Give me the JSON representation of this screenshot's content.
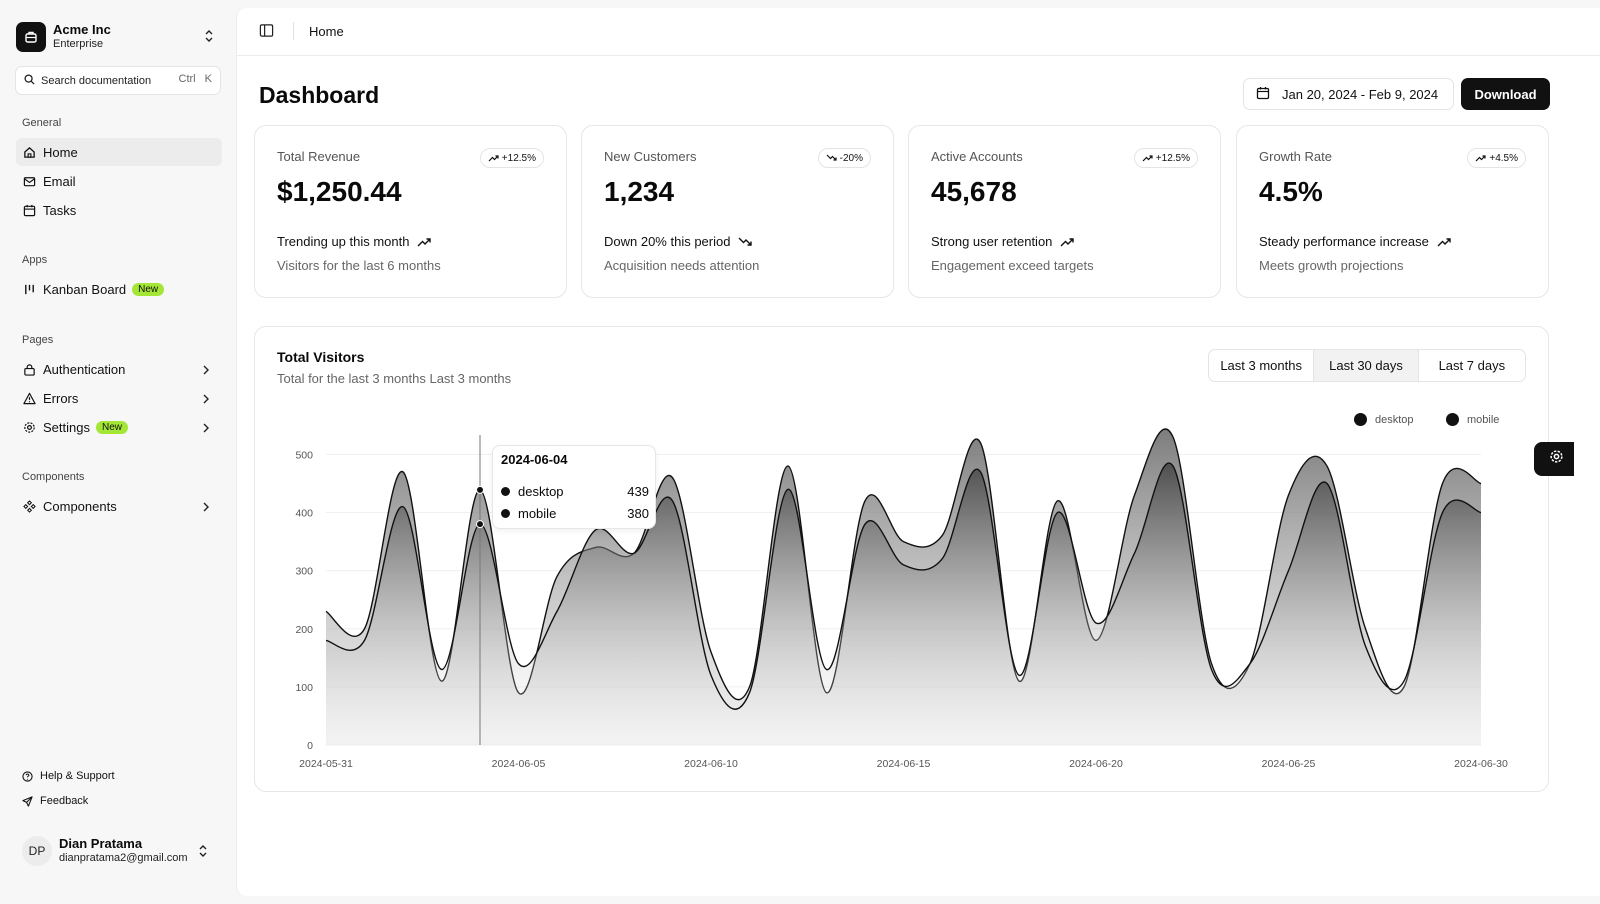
{
  "org": {
    "name": "Acme Inc",
    "plan": "Enterprise"
  },
  "search": {
    "placeholder": "Search documentation",
    "shortcut": "Ctrl K"
  },
  "sidebar": {
    "general_label": "General",
    "general": [
      {
        "label": "Home",
        "icon": "home-icon",
        "active": true
      },
      {
        "label": "Email",
        "icon": "mail-icon"
      },
      {
        "label": "Tasks",
        "icon": "calendar-icon"
      }
    ],
    "apps_label": "Apps",
    "apps": [
      {
        "label": "Kanban Board",
        "icon": "kanban-icon",
        "badge": "New"
      }
    ],
    "pages_label": "Pages",
    "pages": [
      {
        "label": "Authentication",
        "icon": "lock-icon"
      },
      {
        "label": "Errors",
        "icon": "alert-triangle-icon"
      },
      {
        "label": "Settings",
        "icon": "gear-icon",
        "badge": "New"
      }
    ],
    "components_label": "Components",
    "components": [
      {
        "label": "Components",
        "icon": "components-icon"
      }
    ],
    "footer": [
      {
        "label": "Help & Support",
        "icon": "help-circle-icon"
      },
      {
        "label": "Feedback",
        "icon": "send-icon"
      }
    ],
    "badge_color": "#a3e635"
  },
  "user": {
    "initials": "DP",
    "name": "Dian Pratama",
    "email": "dianpratama2@gmail.com"
  },
  "header": {
    "breadcrumb": "Home"
  },
  "main": {
    "title": "Dashboard",
    "date_range": "Jan 20, 2024 - Feb 9, 2024",
    "download_label": "Download"
  },
  "cards": [
    {
      "label": "Total Revenue",
      "trend": "+12.5%",
      "trend_dir": "up",
      "value": "$1,250.44",
      "foot": "Trending up this month",
      "sub": "Visitors for the last 6 months"
    },
    {
      "label": "New Customers",
      "trend": "-20%",
      "trend_dir": "down",
      "value": "1,234",
      "foot": "Down 20% this period",
      "sub": "Acquisition needs attention"
    },
    {
      "label": "Active Accounts",
      "trend": "+12.5%",
      "trend_dir": "up",
      "value": "45,678",
      "foot": "Strong user retention",
      "sub": "Engagement exceed targets"
    },
    {
      "label": "Growth Rate",
      "trend": "+4.5%",
      "trend_dir": "up",
      "value": "4.5%",
      "foot": "Steady performance increase",
      "sub": "Meets growth projections"
    }
  ],
  "visitors": {
    "title": "Total Visitors",
    "subtitle": "Total for the last 3 months Last 3 months",
    "ranges": [
      "Last 3 months",
      "Last 30 days",
      "Last 7 days"
    ],
    "active_range": 1,
    "tooltip": {
      "date": "2024-06-04",
      "desktop_label": "desktop",
      "desktop": "439",
      "mobile_label": "mobile",
      "mobile": "380"
    }
  },
  "chart_data": {
    "type": "area",
    "x": [
      "2024-05-31",
      "2024-06-01",
      "2024-06-02",
      "2024-06-03",
      "2024-06-04",
      "2024-06-05",
      "2024-06-06",
      "2024-06-07",
      "2024-06-08",
      "2024-06-09",
      "2024-06-10",
      "2024-06-11",
      "2024-06-12",
      "2024-06-13",
      "2024-06-14",
      "2024-06-15",
      "2024-06-16",
      "2024-06-17",
      "2024-06-18",
      "2024-06-19",
      "2024-06-20",
      "2024-06-21",
      "2024-06-22",
      "2024-06-23",
      "2024-06-24",
      "2024-06-25",
      "2024-06-26",
      "2024-06-27",
      "2024-06-28",
      "2024-06-29",
      "2024-06-30"
    ],
    "series": [
      {
        "name": "desktop",
        "values": [
          230,
          200,
          470,
          110,
          439,
          90,
          290,
          340,
          330,
          460,
          160,
          100,
          480,
          90,
          420,
          350,
          360,
          520,
          110,
          420,
          180,
          430,
          530,
          140,
          140,
          430,
          480,
          200,
          100,
          450,
          450
        ]
      },
      {
        "name": "mobile",
        "values": [
          180,
          180,
          410,
          130,
          380,
          140,
          230,
          370,
          330,
          420,
          120,
          90,
          440,
          130,
          380,
          310,
          320,
          470,
          120,
          400,
          210,
          330,
          480,
          130,
          140,
          300,
          450,
          170,
          110,
          400,
          400
        ]
      }
    ],
    "xticks": [
      "2024-05-31",
      "2024-06-05",
      "2024-06-10",
      "2024-06-15",
      "2024-06-20",
      "2024-06-25",
      "2024-06-30"
    ],
    "yticks": [
      0,
      100,
      200,
      300,
      400,
      500
    ],
    "ylim": [
      0,
      530
    ],
    "legend": [
      "desktop",
      "mobile"
    ],
    "legend_position": "top-right",
    "grid": true,
    "hover_index": 4
  }
}
